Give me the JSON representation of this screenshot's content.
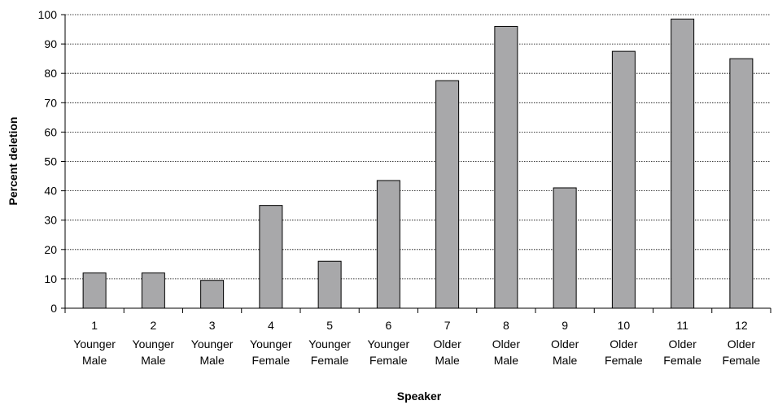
{
  "chart_data": {
    "type": "bar",
    "title": "",
    "xlabel": "Speaker",
    "ylabel": "Percent deletion",
    "ylim": [
      0,
      100
    ],
    "yticks": [
      0,
      10,
      20,
      30,
      40,
      50,
      60,
      70,
      80,
      90,
      100
    ],
    "grid": true,
    "categories": [
      {
        "number": "1",
        "line1": "Younger",
        "line2": "Male"
      },
      {
        "number": "2",
        "line1": "Younger",
        "line2": "Male"
      },
      {
        "number": "3",
        "line1": "Younger",
        "line2": "Male"
      },
      {
        "number": "4",
        "line1": "Younger",
        "line2": "Female"
      },
      {
        "number": "5",
        "line1": "Younger",
        "line2": "Female"
      },
      {
        "number": "6",
        "line1": "Younger",
        "line2": "Female"
      },
      {
        "number": "7",
        "line1": "Older",
        "line2": "Male"
      },
      {
        "number": "8",
        "line1": "Older",
        "line2": "Male"
      },
      {
        "number": "9",
        "line1": "Older",
        "line2": "Male"
      },
      {
        "number": "10",
        "line1": "Older",
        "line2": "Female"
      },
      {
        "number": "11",
        "line1": "Older",
        "line2": "Female"
      },
      {
        "number": "12",
        "line1": "Older",
        "line2": "Female"
      }
    ],
    "values": [
      12,
      12,
      9.5,
      35,
      16,
      43.5,
      77.5,
      96,
      41,
      87.5,
      98.5,
      85
    ],
    "colors": {
      "bar_fill": "#a8a8aa",
      "bar_stroke": "#000000",
      "grid": "#000000"
    }
  }
}
